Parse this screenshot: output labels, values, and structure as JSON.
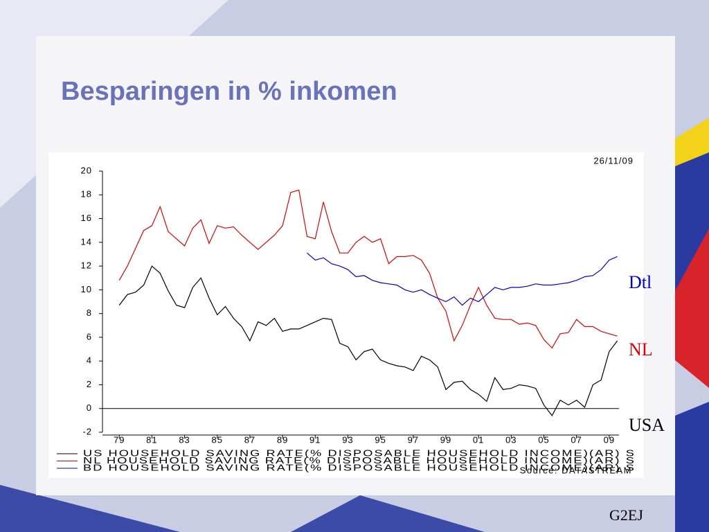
{
  "chart_data": {
    "type": "line",
    "title": "Besparingen in % inkomen",
    "date": "26/11/09",
    "source": "Source: DATASTREAM",
    "footer": "G2EJ",
    "annotations": [
      {
        "text": "Dtl",
        "color": "#0000cc"
      },
      {
        "text": "NL",
        "color": "#e00000"
      },
      {
        "text": "USA",
        "color": "#000000"
      }
    ],
    "x": [
      1979,
      1979.5,
      1980,
      1980.5,
      1981,
      1981.5,
      1982,
      1982.5,
      1983,
      1983.5,
      1984,
      1984.5,
      1985,
      1985.5,
      1986,
      1986.5,
      1987,
      1987.5,
      1988,
      1988.5,
      1989,
      1989.5,
      1990,
      1990.5,
      1991,
      1991.5,
      1992,
      1992.5,
      1993,
      1993.5,
      1994,
      1994.5,
      1995,
      1995.5,
      1996,
      1996.5,
      1997,
      1997.5,
      1998,
      1998.5,
      1999,
      1999.5,
      2000,
      2000.5,
      2001,
      2001.5,
      2002,
      2002.5,
      2003,
      2003.5,
      2004,
      2004.5,
      2005,
      2005.5,
      2006,
      2006.5,
      2007,
      2007.5,
      2008,
      2008.5,
      2009,
      2009.5
    ],
    "series": [
      {
        "name": "US HOUSEHOLD SAVING RATE(% DISPOSABLE HOUSEHOLD INCOME)(AR) S",
        "color": "#000000",
        "values": [
          8.7,
          9.6,
          9.8,
          10.4,
          12.0,
          11.4,
          9.9,
          8.7,
          8.5,
          10.2,
          11.0,
          9.3,
          7.9,
          8.6,
          7.6,
          6.9,
          5.7,
          7.3,
          7.0,
          7.6,
          6.5,
          6.7,
          6.7,
          7.0,
          7.3,
          7.6,
          7.5,
          5.5,
          5.2,
          4.1,
          4.8,
          5.0,
          4.1,
          3.8,
          3.6,
          3.5,
          3.2,
          4.4,
          4.1,
          3.5,
          1.6,
          2.2,
          2.3,
          1.6,
          1.2,
          0.6,
          2.6,
          1.6,
          1.7,
          2.0,
          1.9,
          1.7,
          0.3,
          -0.6,
          0.7,
          0.3,
          0.7,
          0.1,
          2.0,
          2.4,
          4.8,
          5.7
        ]
      },
      {
        "name": "NL HOUSEHOLD SAVING RATE(% DISPOSABLE HOUSEHOLD INCOME)(AR) S",
        "color": "#e00000",
        "values": [
          10.8,
          12.0,
          13.5,
          15.0,
          15.4,
          17.0,
          14.9,
          14.3,
          13.7,
          15.2,
          15.9,
          13.9,
          15.4,
          15.2,
          15.3,
          14.6,
          14.0,
          13.4,
          14.0,
          14.6,
          15.4,
          18.2,
          18.4,
          14.5,
          14.3,
          17.4,
          14.9,
          13.1,
          13.1,
          14.0,
          14.5,
          14.0,
          14.3,
          12.2,
          12.8,
          12.8,
          12.9,
          12.5,
          11.4,
          9.3,
          8.2,
          5.7,
          7.0,
          8.7,
          10.2,
          8.7,
          7.6,
          7.5,
          7.5,
          7.1,
          7.2,
          7.0,
          5.8,
          5.1,
          6.3,
          6.4,
          7.5,
          6.9,
          6.9,
          6.5,
          6.3,
          6.1
        ]
      },
      {
        "name": "BD HOUSEHOLD SAVING RATE(% DISPOSABLE HOUSEHOLD INCOME)(AR) S",
        "color": "#0000cc",
        "values": [
          null,
          null,
          null,
          null,
          null,
          null,
          null,
          null,
          null,
          null,
          null,
          null,
          null,
          null,
          null,
          null,
          null,
          null,
          null,
          null,
          null,
          null,
          null,
          13.1,
          12.5,
          12.7,
          12.2,
          12.0,
          11.7,
          11.1,
          11.2,
          10.8,
          10.6,
          10.5,
          10.4,
          10.0,
          9.8,
          10.0,
          9.6,
          9.3,
          9.0,
          9.4,
          8.7,
          9.3,
          9.0,
          9.6,
          10.2,
          10.0,
          10.2,
          10.2,
          10.3,
          10.5,
          10.4,
          10.4,
          10.5,
          10.6,
          10.8,
          11.1,
          11.2,
          11.7,
          12.5,
          12.8
        ]
      }
    ],
    "zero_line": 0,
    "xlim": [
      1978.1,
      2009.6
    ],
    "xticks": [
      {
        "value": 1979,
        "label": "79"
      },
      {
        "value": 1981,
        "label": "81"
      },
      {
        "value": 1983,
        "label": "83"
      },
      {
        "value": 1985,
        "label": "85"
      },
      {
        "value": 1987,
        "label": "87"
      },
      {
        "value": 1989,
        "label": "89"
      },
      {
        "value": 1991,
        "label": "91"
      },
      {
        "value": 1993,
        "label": "93"
      },
      {
        "value": 1995,
        "label": "95"
      },
      {
        "value": 1997,
        "label": "97"
      },
      {
        "value": 1999,
        "label": "99"
      },
      {
        "value": 2001,
        "label": "01"
      },
      {
        "value": 2003,
        "label": "03"
      },
      {
        "value": 2005,
        "label": "05"
      },
      {
        "value": 2007,
        "label": "07"
      },
      {
        "value": 2009,
        "label": "09"
      }
    ],
    "ylim": [
      -2,
      20
    ],
    "yticks": [
      -2,
      0,
      2,
      4,
      6,
      8,
      10,
      12,
      14,
      16,
      18,
      20
    ]
  }
}
